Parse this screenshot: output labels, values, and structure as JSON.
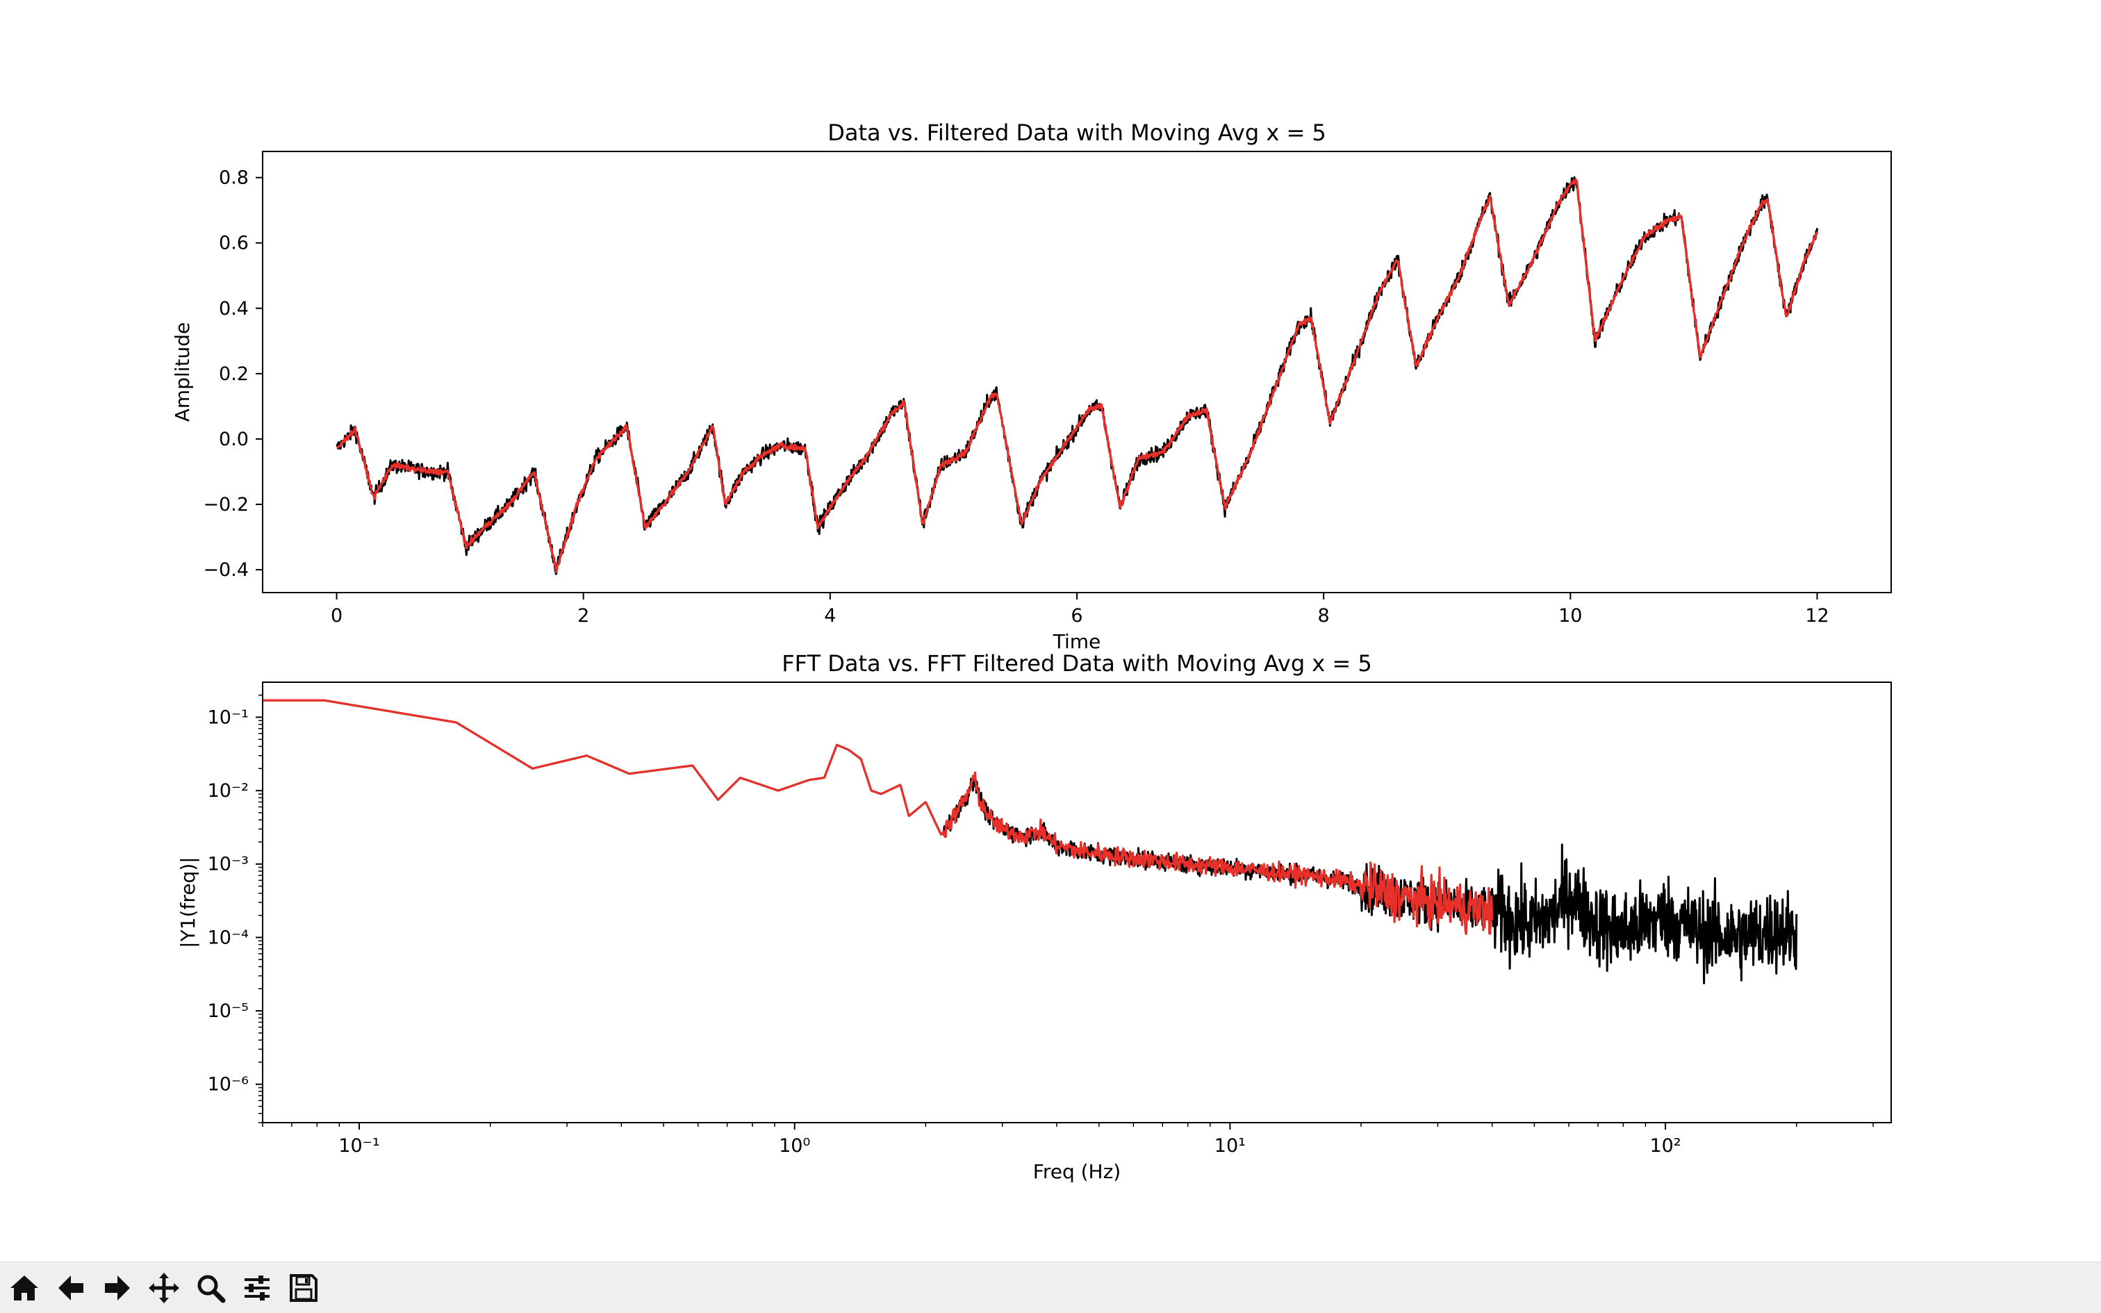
{
  "toolbar": {
    "buttons": [
      {
        "name": "home-button",
        "icon": "home-icon"
      },
      {
        "name": "back-button",
        "icon": "arrow-left-icon"
      },
      {
        "name": "forward-button",
        "icon": "arrow-right-icon"
      },
      {
        "name": "pan-button",
        "icon": "move-icon"
      },
      {
        "name": "zoom-button",
        "icon": "magnifier-icon"
      },
      {
        "name": "configure-subplots-button",
        "icon": "sliders-icon"
      },
      {
        "name": "save-button",
        "icon": "floppy-disk-icon"
      }
    ]
  },
  "colors": {
    "raw": "#000000",
    "filtered": "#e8302a",
    "background": "#ffffff",
    "toolbar": "#efefef"
  },
  "chart_data": [
    {
      "type": "line",
      "title": "Data vs. Filtered Data with Moving Avg x = 5",
      "xlabel": "Time",
      "ylabel": "Amplitude",
      "xlim": [
        -0.6,
        12.6
      ],
      "ylim": [
        -0.47,
        0.88
      ],
      "xticks": [
        0,
        2,
        4,
        6,
        8,
        10,
        12
      ],
      "xtick_labels": [
        "0",
        "2",
        "4",
        "6",
        "8",
        "10",
        "12"
      ],
      "yticks": [
        -0.4,
        -0.2,
        0.0,
        0.2,
        0.4,
        0.6,
        0.8
      ],
      "ytick_labels": [
        "−0.4",
        "−0.2",
        "0.0",
        "0.2",
        "0.4",
        "0.6",
        "0.8"
      ],
      "grid": false,
      "legend": "none",
      "series": [
        {
          "role": "raw",
          "color": "#000000",
          "x": [
            0,
            0.15,
            0.3,
            0.45,
            0.6,
            0.75,
            0.9,
            1.05,
            1.2,
            1.4,
            1.6,
            1.78,
            1.95,
            2.1,
            2.25,
            2.35,
            2.5,
            2.65,
            2.85,
            3.05,
            3.15,
            3.3,
            3.45,
            3.6,
            3.8,
            3.9,
            4.1,
            4.3,
            4.5,
            4.6,
            4.75,
            4.9,
            5.1,
            5.3,
            5.35,
            5.55,
            5.7,
            5.9,
            6.1,
            6.2,
            6.35,
            6.5,
            6.7,
            6.9,
            7.05,
            7.2,
            7.4,
            7.6,
            7.8,
            7.9,
            8.05,
            8.25,
            8.45,
            8.6,
            8.75,
            8.9,
            9.1,
            9.3,
            9.35,
            9.5,
            9.7,
            9.9,
            10.0,
            10.05,
            10.2,
            10.4,
            10.6,
            10.8,
            10.9,
            11.05,
            11.2,
            11.4,
            11.55,
            11.6,
            11.75,
            11.9,
            12.0
          ],
          "y": [
            -0.03,
            0.03,
            -0.18,
            -0.08,
            -0.09,
            -0.1,
            -0.1,
            -0.33,
            -0.27,
            -0.2,
            -0.1,
            -0.4,
            -0.2,
            -0.06,
            0.0,
            0.04,
            -0.27,
            -0.2,
            -0.1,
            0.04,
            -0.2,
            -0.1,
            -0.05,
            -0.02,
            -0.03,
            -0.27,
            -0.15,
            -0.05,
            0.08,
            0.11,
            -0.26,
            -0.08,
            -0.04,
            0.13,
            0.14,
            -0.26,
            -0.13,
            -0.02,
            0.09,
            0.1,
            -0.21,
            -0.06,
            -0.04,
            0.07,
            0.09,
            -0.21,
            -0.05,
            0.15,
            0.35,
            0.37,
            0.05,
            0.24,
            0.45,
            0.55,
            0.22,
            0.35,
            0.5,
            0.7,
            0.74,
            0.41,
            0.55,
            0.72,
            0.78,
            0.79,
            0.3,
            0.47,
            0.62,
            0.67,
            0.68,
            0.25,
            0.4,
            0.6,
            0.72,
            0.73,
            0.37,
            0.55,
            0.63
          ]
        },
        {
          "role": "filtered",
          "color": "#e8302a",
          "x": [
            0,
            0.15,
            0.3,
            0.45,
            0.6,
            0.75,
            0.9,
            1.05,
            1.2,
            1.4,
            1.6,
            1.78,
            1.95,
            2.1,
            2.25,
            2.35,
            2.5,
            2.65,
            2.85,
            3.05,
            3.15,
            3.3,
            3.45,
            3.6,
            3.8,
            3.9,
            4.1,
            4.3,
            4.5,
            4.6,
            4.75,
            4.9,
            5.1,
            5.3,
            5.35,
            5.55,
            5.7,
            5.9,
            6.1,
            6.2,
            6.35,
            6.5,
            6.7,
            6.9,
            7.05,
            7.2,
            7.4,
            7.6,
            7.8,
            7.9,
            8.05,
            8.25,
            8.45,
            8.6,
            8.75,
            8.9,
            9.1,
            9.3,
            9.35,
            9.5,
            9.7,
            9.9,
            10.0,
            10.05,
            10.2,
            10.4,
            10.6,
            10.8,
            10.9,
            11.05,
            11.2,
            11.4,
            11.55,
            11.6,
            11.75,
            11.9,
            12.0
          ],
          "y": [
            -0.03,
            0.03,
            -0.18,
            -0.08,
            -0.09,
            -0.1,
            -0.1,
            -0.33,
            -0.27,
            -0.2,
            -0.1,
            -0.4,
            -0.2,
            -0.06,
            0.0,
            0.04,
            -0.27,
            -0.2,
            -0.1,
            0.04,
            -0.2,
            -0.1,
            -0.05,
            -0.02,
            -0.03,
            -0.27,
            -0.15,
            -0.05,
            0.08,
            0.11,
            -0.26,
            -0.08,
            -0.04,
            0.13,
            0.14,
            -0.26,
            -0.13,
            -0.02,
            0.09,
            0.1,
            -0.21,
            -0.06,
            -0.04,
            0.07,
            0.09,
            -0.21,
            -0.05,
            0.15,
            0.35,
            0.37,
            0.05,
            0.24,
            0.45,
            0.55,
            0.22,
            0.35,
            0.5,
            0.7,
            0.74,
            0.41,
            0.55,
            0.72,
            0.78,
            0.79,
            0.3,
            0.47,
            0.62,
            0.67,
            0.68,
            0.25,
            0.4,
            0.6,
            0.72,
            0.73,
            0.37,
            0.55,
            0.63
          ]
        }
      ]
    },
    {
      "type": "line",
      "title": "FFT Data vs. FFT Filtered Data with Moving Avg x = 5",
      "xlabel": "Freq (Hz)",
      "ylabel": "|Y1(freq)|",
      "xscale": "log",
      "yscale": "log",
      "xlim": [
        0.06,
        330
      ],
      "ylim": [
        3e-07,
        0.3
      ],
      "xticks": [
        0.1,
        1,
        10,
        100
      ],
      "xtick_labels": [
        "10⁻¹",
        "10⁰",
        "10¹",
        "10²"
      ],
      "yticks": [
        1e-06,
        1e-05,
        0.0001,
        0.001,
        0.01,
        0.1
      ],
      "ytick_labels": [
        "10⁻⁶",
        "10⁻⁵",
        "10⁻⁴",
        "10⁻³",
        "10⁻²",
        "10⁻¹"
      ],
      "grid": false,
      "legend": "none",
      "series": [
        {
          "role": "raw",
          "color": "#000000",
          "x": [
            0.06,
            0.083,
            0.167,
            0.25,
            0.333,
            0.417,
            0.583,
            0.667,
            0.75,
            0.917,
            1.08,
            1.17,
            1.25,
            1.33,
            1.42,
            1.5,
            1.58,
            1.75,
            1.83,
            2.0,
            2.17,
            2.33,
            2.5,
            2.58,
            2.67,
            2.83,
            3.0,
            3.33,
            3.67,
            4.0,
            4.5,
            5.0,
            6.0,
            7.0,
            8.0,
            10.0,
            12.0,
            15.0,
            18.0,
            20.0,
            25.0,
            30.0,
            35.0,
            40.0,
            45.0,
            50.0,
            55.0,
            60.0,
            70.0,
            80.0,
            100.0,
            120.0,
            150.0,
            180.0,
            200.0
          ],
          "y": [
            0.17,
            0.17,
            0.085,
            0.02,
            0.03,
            0.017,
            0.022,
            0.0075,
            0.015,
            0.01,
            0.014,
            0.015,
            0.042,
            0.036,
            0.027,
            0.01,
            0.009,
            0.012,
            0.0045,
            0.007,
            0.0025,
            0.0045,
            0.009,
            0.015,
            0.007,
            0.004,
            0.003,
            0.0024,
            0.0028,
            0.0018,
            0.0015,
            0.0014,
            0.0012,
            0.0011,
            0.001,
            0.0009,
            0.0008,
            0.0007,
            0.0006,
            0.0005,
            0.00035,
            0.0003,
            0.00025,
            0.00022,
            0.00018,
            0.00015,
            0.0002,
            0.0004,
            0.00015,
            0.00012,
            0.0002,
            0.00012,
            0.0001,
            0.00013,
            0.00011
          ]
        },
        {
          "role": "filtered",
          "color": "#e8302a",
          "x": [
            0.06,
            0.083,
            0.167,
            0.25,
            0.333,
            0.417,
            0.583,
            0.667,
            0.75,
            0.917,
            1.08,
            1.17,
            1.25,
            1.33,
            1.42,
            1.5,
            1.58,
            1.75,
            1.83,
            2.0,
            2.17,
            2.33,
            2.5,
            2.58,
            2.67,
            2.83,
            3.0,
            3.33,
            3.67,
            4.0,
            4.5,
            5.0,
            6.0,
            7.0,
            8.0,
            10.0,
            12.0,
            15.0,
            18.0,
            20.0,
            25.0,
            30.0,
            35.0,
            40.0
          ],
          "y": [
            0.17,
            0.17,
            0.085,
            0.02,
            0.03,
            0.017,
            0.022,
            0.0075,
            0.015,
            0.01,
            0.014,
            0.015,
            0.042,
            0.036,
            0.027,
            0.01,
            0.009,
            0.012,
            0.0045,
            0.007,
            0.0025,
            0.0045,
            0.009,
            0.015,
            0.007,
            0.004,
            0.003,
            0.0024,
            0.0028,
            0.0018,
            0.0015,
            0.0014,
            0.0012,
            0.0011,
            0.001,
            0.0009,
            0.0008,
            0.0007,
            0.0006,
            0.0005,
            0.00035,
            0.0003,
            0.00025,
            0.00022
          ]
        }
      ]
    }
  ]
}
